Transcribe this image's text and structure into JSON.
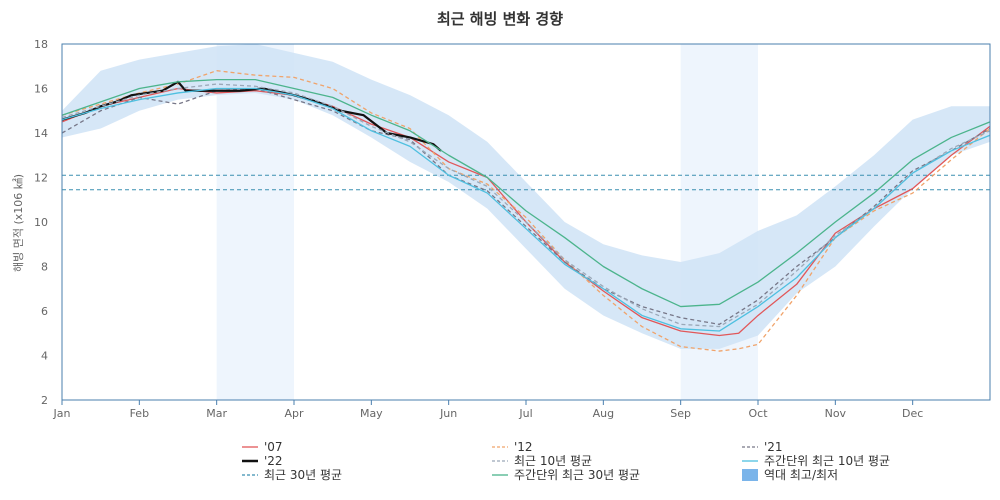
{
  "chart_data": {
    "type": "line",
    "title": "최근 해빙 변화 경향",
    "ylabel": "해빙 면적 (x106 ㎢)",
    "xlabel": "",
    "ylim": [
      2,
      18
    ],
    "yticks": [
      2,
      4,
      6,
      8,
      10,
      12,
      14,
      16,
      18
    ],
    "xlim": [
      0,
      12
    ],
    "xticks": [
      {
        "x": 0,
        "label": "Jan"
      },
      {
        "x": 1,
        "label": "Feb"
      },
      {
        "x": 2,
        "label": "Mar"
      },
      {
        "x": 3,
        "label": "Apr"
      },
      {
        "x": 4,
        "label": "May"
      },
      {
        "x": 5,
        "label": "Jun"
      },
      {
        "x": 6,
        "label": "Jul"
      },
      {
        "x": 7,
        "label": "Aug"
      },
      {
        "x": 8,
        "label": "Sep"
      },
      {
        "x": 9,
        "label": "Oct"
      },
      {
        "x": 10,
        "label": "Nov"
      },
      {
        "x": 11,
        "label": "Dec"
      }
    ],
    "shaded_months": [
      [
        2,
        3
      ],
      [
        8,
        9
      ]
    ],
    "hlines": [
      12.1,
      11.45
    ],
    "band": {
      "name": "역대 최고/최저",
      "color": "#cfe3f6",
      "x": [
        0,
        0.5,
        1,
        1.5,
        2,
        2.5,
        3,
        3.5,
        4,
        4.5,
        5,
        5.5,
        6,
        6.5,
        7,
        7.5,
        8,
        8.5,
        9,
        9.5,
        10,
        10.5,
        11,
        11.5,
        12
      ],
      "high": [
        15.0,
        16.8,
        17.3,
        17.6,
        17.9,
        18.0,
        17.6,
        17.2,
        16.4,
        15.7,
        14.8,
        13.6,
        11.8,
        10.0,
        9.0,
        8.5,
        8.2,
        8.6,
        9.6,
        10.3,
        11.6,
        13.0,
        14.6,
        15.2,
        15.2
      ],
      "low": [
        13.8,
        14.2,
        15.0,
        15.5,
        15.7,
        15.8,
        15.5,
        14.8,
        13.8,
        12.7,
        11.8,
        10.6,
        8.8,
        7.0,
        5.8,
        5.0,
        4.3,
        4.3,
        4.9,
        6.8,
        8.0,
        9.8,
        11.5,
        13.0,
        13.6
      ]
    },
    "series": [
      {
        "name": "'07",
        "color": "#e15759",
        "dash": "",
        "width": 1.3,
        "x": [
          0,
          0.5,
          1,
          1.5,
          2,
          2.5,
          3,
          3.5,
          4,
          4.5,
          5,
          5.5,
          6,
          6.5,
          7,
          7.5,
          8,
          8.5,
          8.75,
          9,
          9.5,
          10,
          10.5,
          11,
          11.5,
          12
        ],
        "y": [
          14.5,
          15.2,
          15.6,
          16.0,
          15.8,
          15.9,
          15.7,
          15.2,
          14.4,
          13.8,
          12.7,
          12.0,
          10.0,
          8.2,
          6.9,
          5.7,
          5.1,
          4.9,
          5.0,
          5.8,
          7.2,
          9.5,
          10.6,
          11.5,
          13.0,
          14.3
        ]
      },
      {
        "name": "'12",
        "color": "#f0a36a",
        "dash": "4,3",
        "width": 1.3,
        "x": [
          0,
          0.5,
          1,
          1.5,
          2,
          2.5,
          3,
          3.5,
          4,
          4.5,
          5,
          5.5,
          6,
          6.5,
          7,
          7.5,
          8,
          8.5,
          8.75,
          9,
          9.5,
          10,
          10.5,
          11,
          11.5,
          12
        ],
        "y": [
          14.8,
          15.3,
          15.8,
          16.2,
          16.8,
          16.6,
          16.5,
          16.0,
          14.9,
          14.2,
          12.4,
          11.7,
          10.2,
          8.3,
          6.7,
          5.3,
          4.4,
          4.2,
          4.3,
          4.5,
          6.7,
          9.3,
          10.5,
          11.3,
          12.8,
          14.2
        ]
      },
      {
        "name": "'21",
        "color": "#777788",
        "dash": "4,3",
        "width": 1.3,
        "x": [
          0,
          0.5,
          1,
          1.5,
          2,
          2.5,
          3,
          3.5,
          4,
          4.5,
          5,
          5.5,
          6,
          6.5,
          7,
          7.5,
          8,
          8.5,
          9,
          9.5,
          10,
          10.5,
          11,
          11.5,
          12
        ],
        "y": [
          14.0,
          15.0,
          15.6,
          15.3,
          15.9,
          16.0,
          15.5,
          15.0,
          14.1,
          13.7,
          12.1,
          11.4,
          9.8,
          8.2,
          7.0,
          6.2,
          5.7,
          5.4,
          6.5,
          8.0,
          9.3,
          10.7,
          12.3,
          13.2,
          14.2
        ]
      },
      {
        "name": "'22",
        "color": "#111111",
        "dash": "",
        "width": 2.2,
        "x": [
          0,
          0.3,
          0.5,
          0.7,
          0.9,
          1.1,
          1.3,
          1.5,
          1.6,
          1.8,
          2.0,
          2.3,
          2.6,
          3.0,
          3.3,
          3.6,
          3.9,
          4.2,
          4.5,
          4.8,
          4.9
        ],
        "y": [
          14.6,
          14.9,
          15.2,
          15.4,
          15.7,
          15.8,
          15.9,
          16.3,
          15.9,
          15.9,
          15.9,
          15.9,
          16.0,
          15.7,
          15.4,
          15.0,
          14.8,
          14.0,
          13.8,
          13.5,
          13.2
        ]
      },
      {
        "name": "최근 10년 평균",
        "color": "#9aa8b8",
        "dash": "4,3",
        "width": 1.3,
        "x": [
          0,
          0.5,
          1,
          1.5,
          2,
          2.5,
          3,
          3.5,
          4,
          4.5,
          5,
          5.5,
          6,
          6.5,
          7,
          7.5,
          8,
          8.5,
          9,
          9.5,
          10,
          10.5,
          11,
          11.5,
          12
        ],
        "y": [
          14.7,
          15.2,
          15.7,
          16.0,
          16.2,
          16.1,
          15.8,
          15.2,
          14.3,
          13.6,
          12.4,
          11.6,
          10.0,
          8.3,
          7.1,
          6.1,
          5.4,
          5.3,
          6.3,
          7.8,
          9.4,
          10.6,
          12.2,
          13.3,
          14.1
        ]
      },
      {
        "name": "주간단위 최근 10년 평균",
        "color": "#4fc0e0",
        "dash": "",
        "width": 1.3,
        "x": [
          0,
          0.5,
          1,
          1.5,
          2,
          2.5,
          3,
          3.5,
          4,
          4.5,
          5,
          5.5,
          6,
          6.5,
          7,
          7.5,
          8,
          8.5,
          9,
          9.5,
          10,
          10.5,
          11,
          11.5,
          12
        ],
        "y": [
          14.6,
          15.1,
          15.5,
          15.8,
          16.0,
          16.0,
          15.7,
          15.1,
          14.1,
          13.4,
          12.1,
          11.3,
          9.7,
          8.1,
          7.0,
          5.8,
          5.2,
          5.1,
          6.2,
          7.5,
          9.3,
          10.6,
          12.2,
          13.2,
          13.9
        ]
      },
      {
        "name": "최근 30년 평균",
        "color": "#3a8fb0",
        "dash": "4,3",
        "width": 1.3,
        "x": [
          0,
          12
        ],
        "y": [
          12.1,
          12.1
        ]
      },
      {
        "name": "주간단위 최근 30년 평균",
        "color": "#4cb48c",
        "dash": "",
        "width": 1.3,
        "x": [
          0,
          0.5,
          1,
          1.5,
          2,
          2.5,
          3,
          3.5,
          4,
          4.5,
          5,
          5.5,
          6,
          6.5,
          7,
          7.5,
          8,
          8.5,
          9,
          9.5,
          10,
          10.5,
          11,
          11.5,
          12
        ],
        "y": [
          14.8,
          15.4,
          16.0,
          16.3,
          16.4,
          16.4,
          16.0,
          15.6,
          14.8,
          14.1,
          13.0,
          12.0,
          10.5,
          9.3,
          8.0,
          7.0,
          6.2,
          6.3,
          7.3,
          8.6,
          10.0,
          11.3,
          12.8,
          13.8,
          14.5
        ]
      }
    ]
  },
  "legend": [
    {
      "label": "'07",
      "color": "#e15759",
      "style": "solid"
    },
    {
      "label": "'12",
      "color": "#f0a36a",
      "style": "dashed"
    },
    {
      "label": "'21",
      "color": "#777788",
      "style": "dashed"
    },
    {
      "label": "'22",
      "color": "#111111",
      "style": "bold"
    },
    {
      "label": "최근 10년 평균",
      "color": "#9aa8b8",
      "style": "dashed"
    },
    {
      "label": "주간단위 최근 10년 평균",
      "color": "#4fc0e0",
      "style": "solid"
    },
    {
      "label": "최근 30년 평균",
      "color": "#3a8fb0",
      "style": "dashed"
    },
    {
      "label": "주간단위 최근 30년 평균",
      "color": "#4cb48c",
      "style": "solid"
    },
    {
      "label": "역대 최고/최저",
      "color": "#7ab4ea",
      "style": "box"
    }
  ]
}
